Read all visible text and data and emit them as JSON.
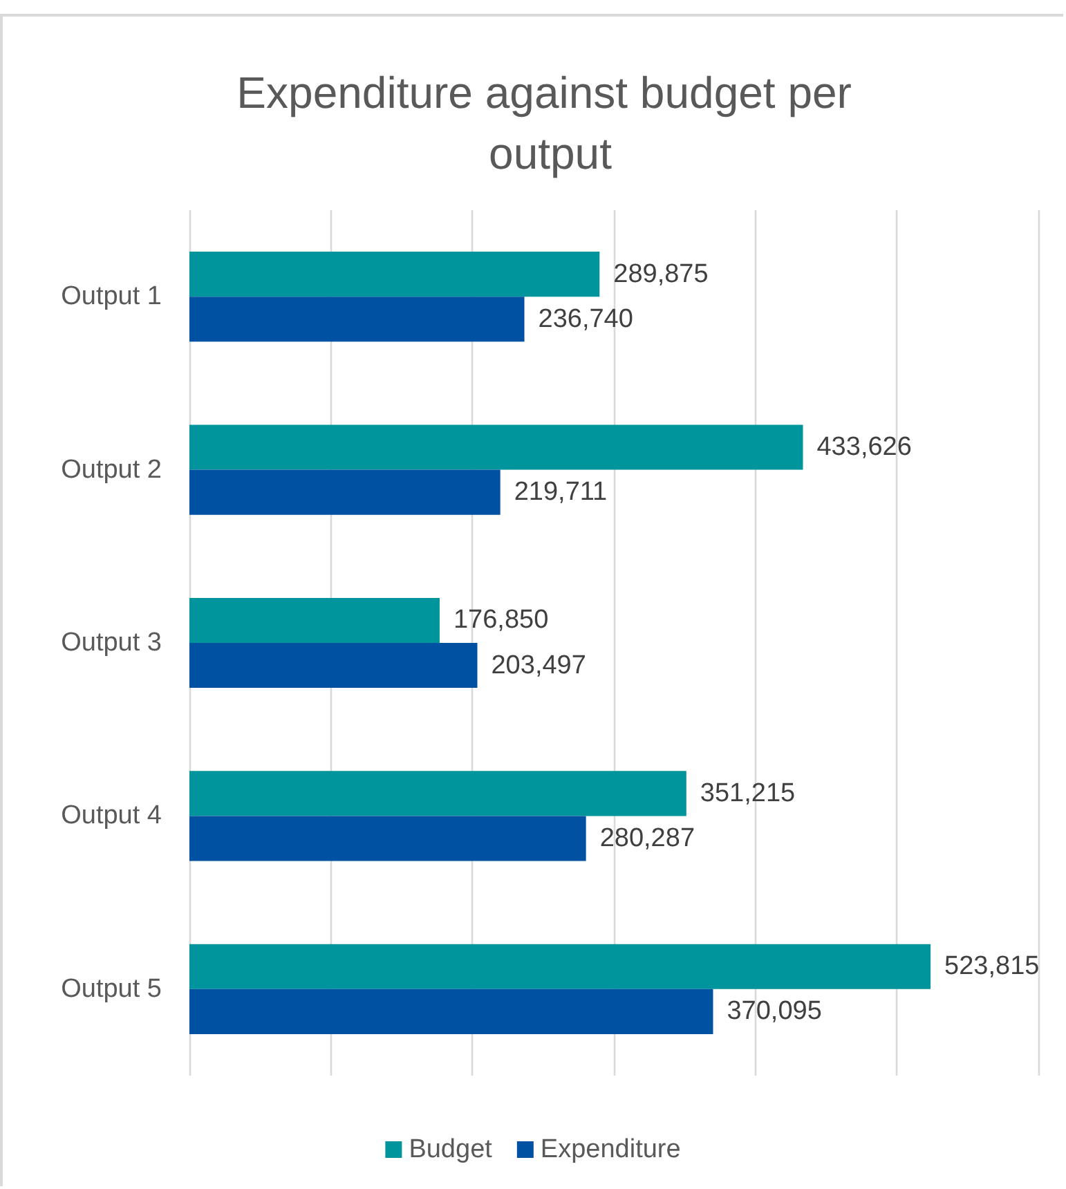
{
  "chart_data": {
    "type": "bar",
    "orientation": "horizontal",
    "title": "Expenditure against budget per output",
    "categories": [
      "Output 1",
      "Output 2",
      "Output 3",
      "Output 4",
      "Output 5"
    ],
    "series": [
      {
        "name": "Budget",
        "color": "#00959c",
        "values": [
          289875,
          433626,
          176850,
          351215,
          523815
        ],
        "value_labels": [
          "289,875",
          "433,626",
          "176,850",
          "351,215",
          "523,815"
        ]
      },
      {
        "name": "Expenditure",
        "color": "#0051a2",
        "values": [
          236740,
          219711,
          203497,
          280287,
          370095
        ],
        "value_labels": [
          "236,740",
          "219,711",
          "203,497",
          "280,287",
          "370,095"
        ]
      }
    ],
    "tick_labels": "y",
    "grid": "x",
    "legend": "bottom"
  }
}
